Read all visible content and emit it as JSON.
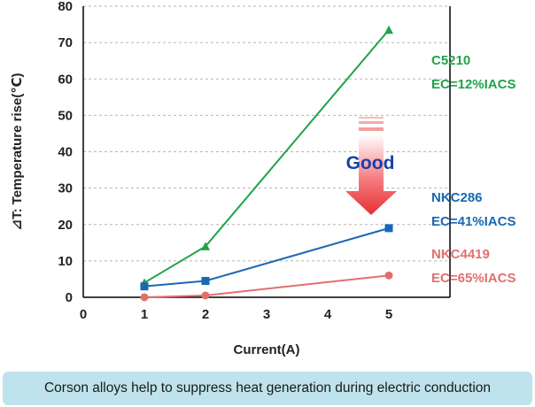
{
  "chart_data": {
    "type": "line",
    "x": [
      1,
      2,
      5
    ],
    "series": [
      {
        "name": "C5210",
        "ec": "EC=12%IACS",
        "color": "#1fa34a",
        "marker": "triangle",
        "values": [
          4,
          14,
          73.5
        ]
      },
      {
        "name": "NKC286",
        "ec": "EC=41%IACS",
        "color": "#1a68b3",
        "marker": "square",
        "values": [
          3,
          4.5,
          19
        ]
      },
      {
        "name": "NKC4419",
        "ec": "EC=65%IACS",
        "color": "#e0706e",
        "marker": "circle",
        "values": [
          0,
          0.5,
          6
        ]
      }
    ],
    "xlim": [
      0,
      6
    ],
    "ylim": [
      0,
      80
    ],
    "xticks": [
      "0",
      "1",
      "2",
      "3",
      "4",
      "5"
    ],
    "yticks": [
      "0",
      "10",
      "20",
      "30",
      "40",
      "50",
      "60",
      "70",
      "80"
    ],
    "xlabel": "Current(A)",
    "ylabel": "⊿T: Temperature rise(℃)",
    "grid": "horizontal-dashed",
    "annotation": {
      "text": "Good",
      "color": "#1a3fa8",
      "arrow_color": "#e8353a"
    }
  },
  "caption": "Corson alloys help to suppress heat generation during electric conduction"
}
